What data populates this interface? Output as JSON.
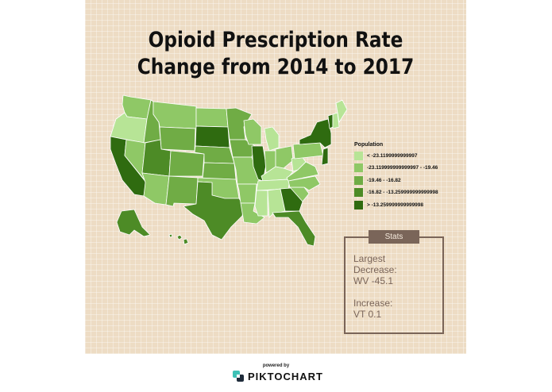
{
  "title": {
    "line1": "Opioid Prescription Rate",
    "line2": "Change from 2014 to 2017"
  },
  "legend": {
    "title": "Population",
    "items": [
      {
        "label": "< -23.1199999999997",
        "color": "#b7e496"
      },
      {
        "label": "-23.119999999999997 - -19.46",
        "color": "#8fc866"
      },
      {
        "label": "-19.46 - -16.82",
        "color": "#70ac45"
      },
      {
        "label": "-16.82 - -13.259999999999998",
        "color": "#4d8b26"
      },
      {
        "label": "> -13.259999999999998",
        "color": "#2f6b10"
      }
    ]
  },
  "stats": {
    "tab_label": "Stats",
    "line1": "Largest",
    "line2": "Decrease:",
    "line3": "WV -45.1",
    "line4": "Increase:",
    "line5": "VT 0.1",
    "border_color": "#7a6559"
  },
  "footer": {
    "powered_by": "powered by",
    "brand": "PIKTOCHART"
  },
  "map": {
    "region": "United States",
    "classes": {
      "WA": 1,
      "OR": 0,
      "CA": 4,
      "NV": 1,
      "ID": 2,
      "MT": 1,
      "WY": 2,
      "UT": 3,
      "AZ": 1,
      "CO": 2,
      "NM": 2,
      "ND": 1,
      "SD": 4,
      "NE": 2,
      "KS": 2,
      "OK": 1,
      "TX": 3,
      "MN": 2,
      "IA": 2,
      "MO": 1,
      "AR": 1,
      "LA": 1,
      "WI": 1,
      "IL": 4,
      "MI": 0,
      "IN": 1,
      "OH": 1,
      "KY": 0,
      "TN": 0,
      "MS": 0,
      "AL": 0,
      "GA": 4,
      "FL": 3,
      "SC": 1,
      "NC": 1,
      "VA": 1,
      "WV": 0,
      "PA": 1,
      "NY": 4,
      "ME": 0,
      "VT": 4,
      "NH": 0,
      "NJ": 4,
      "AK": 3,
      "HI": 3
    }
  }
}
